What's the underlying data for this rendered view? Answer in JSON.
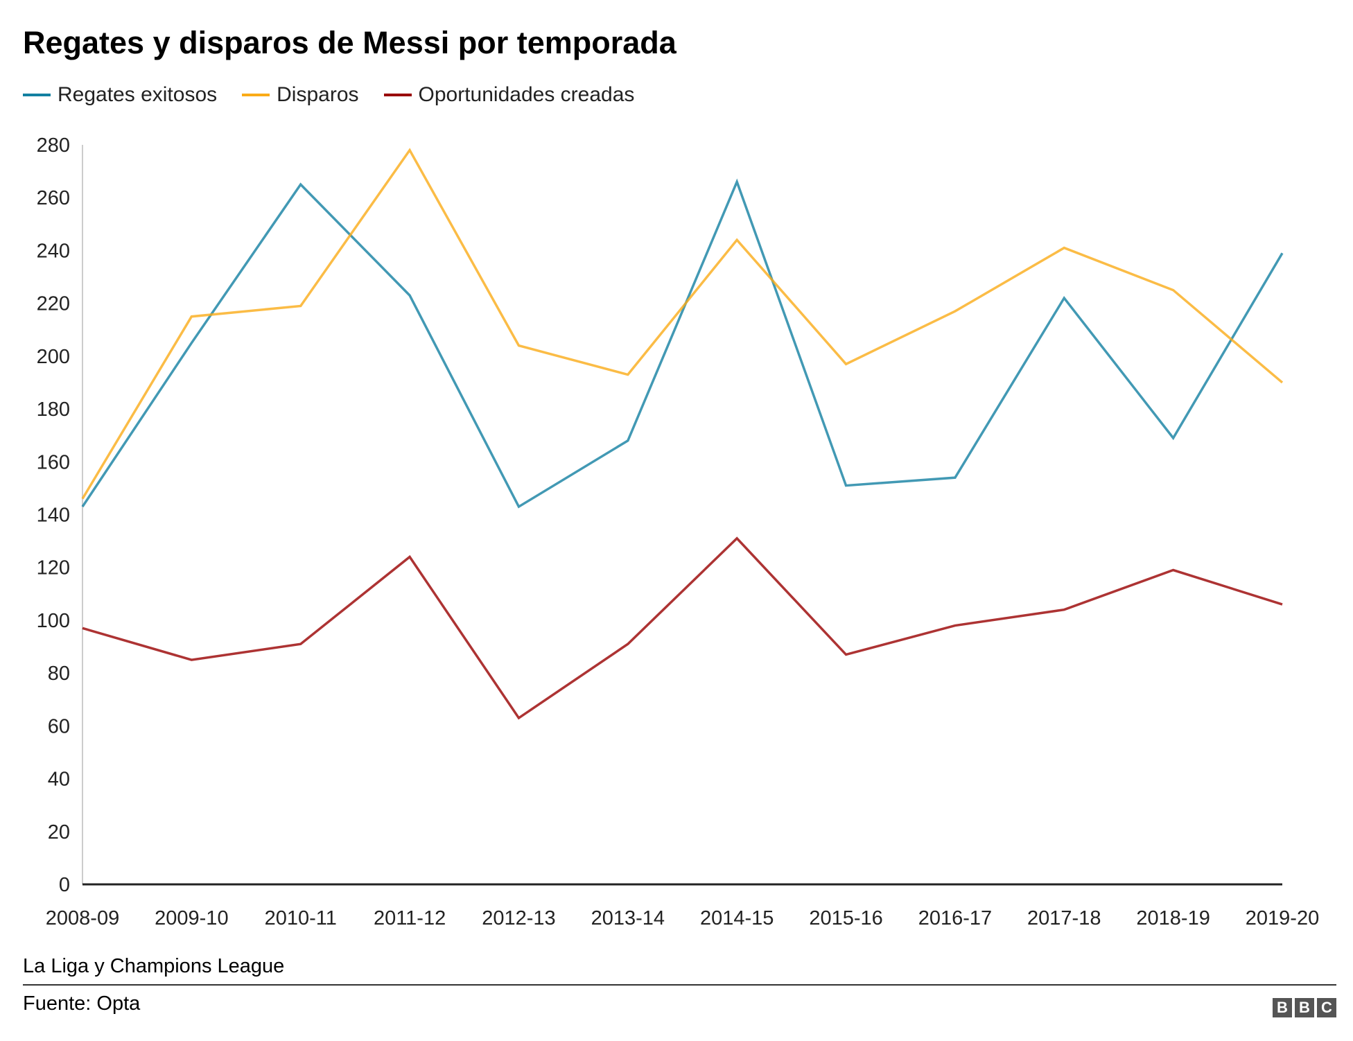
{
  "chart_data": {
    "type": "line",
    "title": "Regates y disparos de Messi por temporada",
    "subtitle": "La Liga y Champions League",
    "source": "Fuente: Opta",
    "logo": "BBC",
    "xlabel": "",
    "ylabel": "",
    "ylim": [
      0,
      280
    ],
    "yticks": [
      0,
      20,
      40,
      60,
      80,
      100,
      120,
      140,
      160,
      180,
      200,
      220,
      240,
      260,
      280
    ],
    "grid": false,
    "legend_position": "top-left",
    "categories": [
      "2008-09",
      "2009-10",
      "2010-11",
      "2011-12",
      "2012-13",
      "2013-14",
      "2014-15",
      "2015-16",
      "2016-17",
      "2017-18",
      "2018-19",
      "2019-20"
    ],
    "series": [
      {
        "name": "Regates exitosos",
        "color": "#1380A1",
        "values": [
          143,
          205,
          265,
          223,
          143,
          168,
          266,
          151,
          154,
          222,
          169,
          239
        ]
      },
      {
        "name": "Disparos",
        "color": "#FAAB18",
        "values": [
          146,
          215,
          219,
          278,
          204,
          193,
          244,
          197,
          217,
          241,
          225,
          190
        ]
      },
      {
        "name": "Oportunidades creadas",
        "color": "#990000",
        "values": [
          97,
          85,
          91,
          124,
          63,
          91,
          131,
          87,
          98,
          104,
          119,
          106
        ]
      }
    ]
  }
}
